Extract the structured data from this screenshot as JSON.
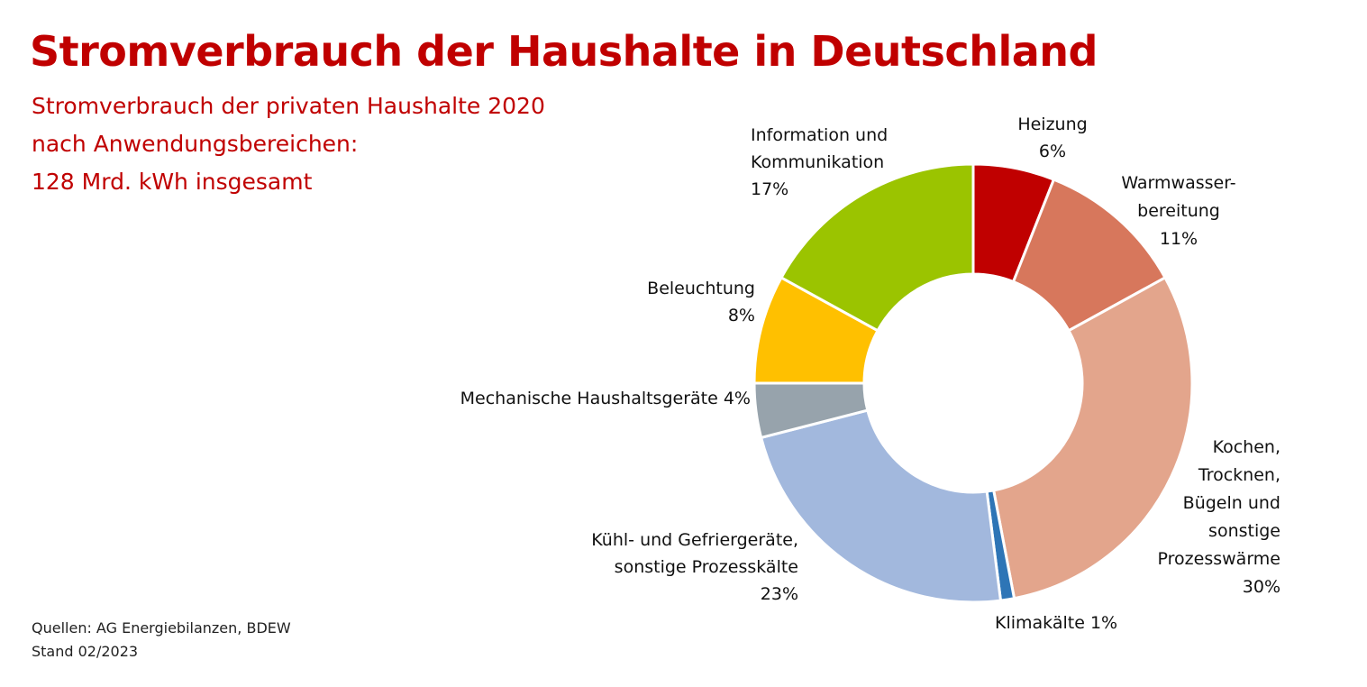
{
  "title": "Stromverbrauch der Haushalte in Deutschland",
  "subtitle": {
    "line1": "Stromverbrauch der privaten Haushalte 2020",
    "line2": "nach Anwendungsbereichen:",
    "line3": "128 Mrd. kWh insgesamt"
  },
  "sources": {
    "line1": "Quellen: AG Energiebilanzen, BDEW",
    "line2": "Stand 02/2023"
  },
  "chart_data": {
    "type": "pie",
    "variant": "donut",
    "total": "128 Mrd. kWh",
    "unit": "%",
    "slices": [
      {
        "label": "Heizung",
        "value": 6,
        "color": "#c00000",
        "label_lines": [
          "Heizung",
          "6%"
        ]
      },
      {
        "label": "Warmwasserbereitung",
        "value": 11,
        "color": "#d7775c",
        "label_lines": [
          "Warmwasser-",
          "bereitung",
          "11%"
        ]
      },
      {
        "label": "Kochen, Trocknen, Bügeln und sonstige Prozesswärme",
        "value": 30,
        "color": "#e3a58c",
        "label_lines": [
          "Kochen,",
          "Trocknen,",
          "Bügeln und",
          "sonstige",
          "Prozesswärme",
          "30%"
        ]
      },
      {
        "label": "Klimakälte",
        "value": 1,
        "color": "#2e75b6",
        "label_lines": [
          "Klimakälte 1%"
        ]
      },
      {
        "label": "Kühl- und Gefriergeräte, sonstige Prozesskälte",
        "value": 23,
        "color": "#a2b8dd",
        "label_lines": [
          "Kühl- und Gefriergeräte,",
          "sonstige Prozesskälte",
          "23%"
        ]
      },
      {
        "label": "Mechanische Haushaltsgeräte",
        "value": 4,
        "color": "#97a3ac",
        "label_lines": [
          "Mechanische Haushaltsgeräte 4%"
        ]
      },
      {
        "label": "Beleuchtung",
        "value": 8,
        "color": "#ffc000",
        "label_lines": [
          "Beleuchtung",
          "8%"
        ]
      },
      {
        "label": "Information und Kommunikation",
        "value": 17,
        "color": "#9bc400",
        "label_lines": [
          "Information und",
          "Kommunikation",
          "17%"
        ]
      }
    ]
  }
}
